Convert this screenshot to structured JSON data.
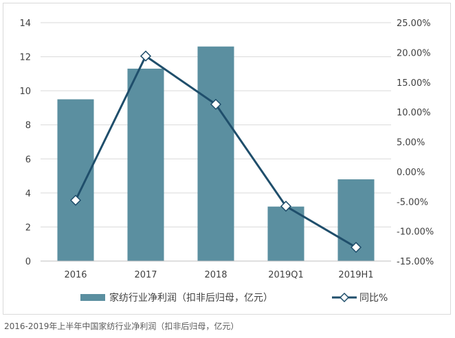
{
  "caption": "2016-2019年上半年中国家纺行业净利润（扣非后归母，亿元）",
  "chart_data": {
    "type": "bar",
    "categories": [
      "2016",
      "2017",
      "2018",
      "2019Q1",
      "2019H1"
    ],
    "series": [
      {
        "name": "家纺行业净利润（扣非后归母，亿元）",
        "type": "bar",
        "axis": "left",
        "values": [
          9.5,
          11.3,
          12.6,
          3.2,
          4.8
        ],
        "color": "#5b8fa0"
      },
      {
        "name": "同比%",
        "type": "line",
        "axis": "right",
        "values": [
          -4.8,
          19.4,
          11.3,
          -5.8,
          -12.7
        ],
        "color": "#1f4e6b"
      }
    ],
    "y_left": {
      "lim": [
        0,
        14
      ],
      "ticks": [
        "0",
        "2",
        "4",
        "6",
        "8",
        "10",
        "12",
        "14"
      ]
    },
    "y_right": {
      "lim": [
        -15,
        25
      ],
      "ticks": [
        "-15.00%",
        "-10.00%",
        "-5.00%",
        "0.00%",
        "5.00%",
        "10.00%",
        "15.00%",
        "20.00%",
        "25.00%"
      ]
    },
    "grid": true,
    "legend": "bottom"
  }
}
